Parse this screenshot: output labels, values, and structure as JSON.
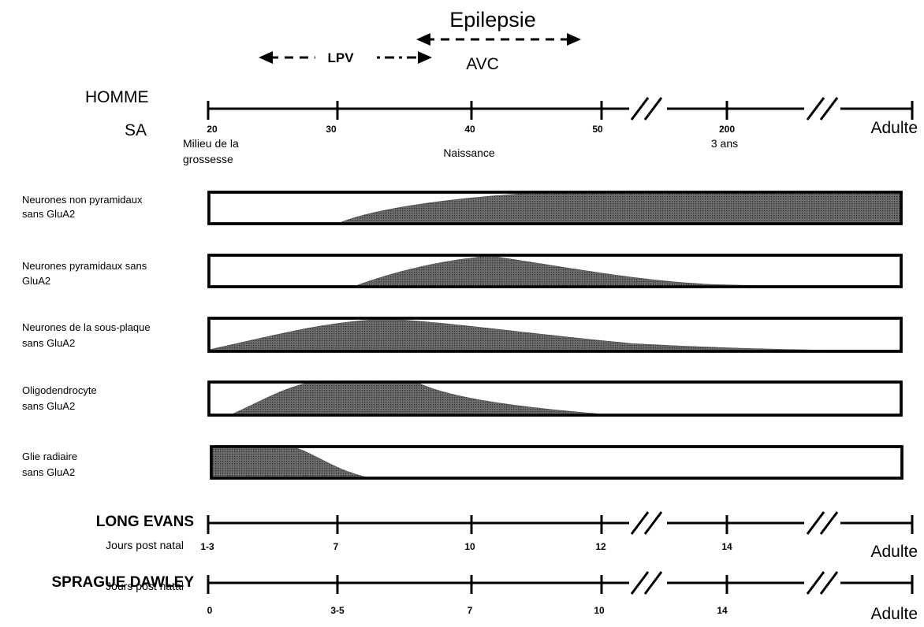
{
  "header": {
    "epilepsie": "Epilepsie",
    "lpv": "LPV",
    "avc": "AVC"
  },
  "human_axis": {
    "species": "HOMME",
    "unit": "SA",
    "ticks": [
      "20",
      "30",
      "40",
      "50",
      "200"
    ],
    "end_label": "Adulte",
    "annotations": {
      "mid_pregnancy_line1": "Milieu de la",
      "mid_pregnancy_line2": "grossesse",
      "birth": "Naissance",
      "three_years": "3 ans"
    }
  },
  "rows": [
    {
      "line1": "Neurones non pyramidaux",
      "line2": "sans GluA2"
    },
    {
      "line1": "Neurones pyramidaux sans",
      "line2": "GluA2"
    },
    {
      "line1": "Neurones de la sous-plaque",
      "line2": "sans GluA2"
    },
    {
      "line1": "Oligodendrocyte",
      "line2": "sans GluA2"
    },
    {
      "line1": "Glie radiaire",
      "line2": "sans GluA2"
    }
  ],
  "long_evans": {
    "name": "LONG EVANS",
    "unit": "Jours post natal",
    "ticks": [
      "1-3",
      "7",
      "10",
      "12",
      "14"
    ],
    "end_label": "Adulte"
  },
  "sprague_dawley": {
    "name": "SPRAGUE DAWLEY",
    "unit": "Jours post natal",
    "ticks": [
      "0",
      "3-5",
      "7",
      "10",
      "14"
    ],
    "end_label": "Adulte"
  }
}
